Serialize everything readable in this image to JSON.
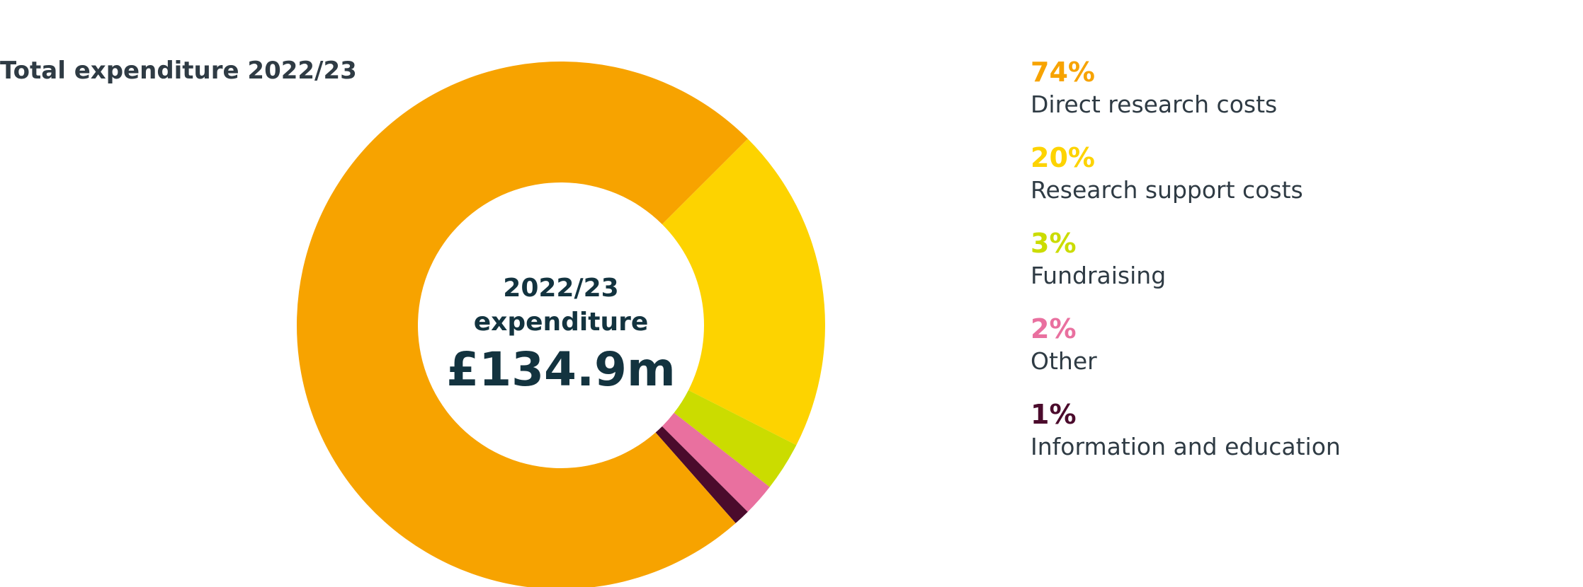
{
  "chart_data": {
    "type": "pie",
    "variant": "donut",
    "title": "Total expenditure 2022/23",
    "center_label": {
      "line1": "2022/23",
      "line2": "expenditure",
      "amount": "£134.9m"
    },
    "legend_placement": "right",
    "categories": [
      "Direct research costs",
      "Research support costs",
      "Fundraising",
      "Other",
      "Information and education"
    ],
    "values": [
      74,
      20,
      3,
      2,
      1
    ],
    "value_labels": [
      "74%",
      "20%",
      "3%",
      "2%",
      "1%"
    ],
    "colors": [
      "#f7a300",
      "#fdd300",
      "#cbdc00",
      "#e9709f",
      "#4b0b2c"
    ]
  }
}
